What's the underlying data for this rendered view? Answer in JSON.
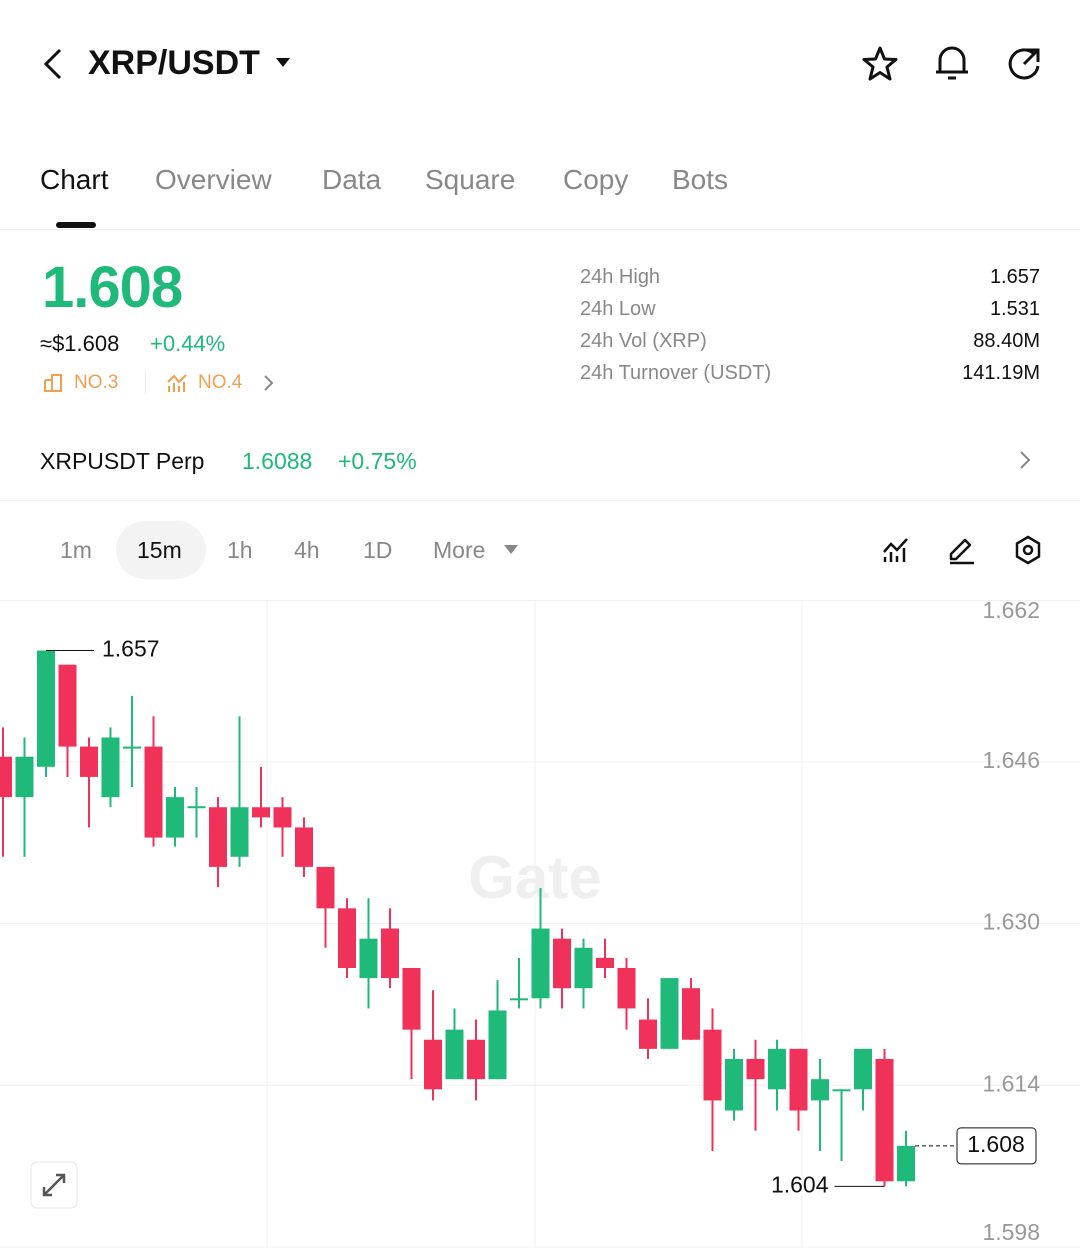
{
  "header": {
    "title": "XRP/USDT"
  },
  "tabs": [
    "Chart",
    "Overview",
    "Data",
    "Square",
    "Copy",
    "Bots"
  ],
  "price": {
    "last": "1.608",
    "usd": "≈$1.608",
    "change": "+0.44%",
    "rank_a": "NO.3",
    "rank_b": "NO.4"
  },
  "stats": [
    {
      "label": "24h High",
      "value": "1.657"
    },
    {
      "label": "24h Low",
      "value": "1.531"
    },
    {
      "label": "24h Vol (XRP)",
      "value": "88.40M"
    },
    {
      "label": "24h Turnover (USDT)",
      "value": "141.19M"
    }
  ],
  "perp": {
    "name": "XRPUSDT Perp",
    "price": "1.6088",
    "change": "+0.75%"
  },
  "intervals": [
    "1m",
    "15m",
    "1h",
    "4h",
    "1D",
    "More"
  ],
  "chart_data": {
    "type": "candlestick",
    "watermark": "Gate",
    "up_color": "#1fba7a",
    "down_color": "#f0315a",
    "open": [
      1.6465,
      1.6425,
      1.6455,
      1.6556,
      1.6475,
      1.6425,
      1.6473,
      1.6475,
      1.6385,
      1.6415,
      1.6415,
      1.6366,
      1.6415,
      1.6415,
      1.6395,
      1.6356,
      1.6315,
      1.6246,
      1.6295,
      1.6256,
      1.6185,
      1.6146,
      1.6185,
      1.6146,
      1.6225,
      1.6226,
      1.6285,
      1.6236,
      1.6266,
      1.6256,
      1.6205,
      1.6176,
      1.6236,
      1.6195,
      1.6115,
      1.6166,
      1.6136,
      1.6176,
      1.6125,
      1.6135,
      1.6136,
      1.6166,
      1.6045
    ],
    "high": [
      1.6494,
      1.6484,
      1.657,
      1.6556,
      1.6484,
      1.6494,
      1.6525,
      1.6505,
      1.6435,
      1.6435,
      1.6425,
      1.6505,
      1.6455,
      1.6425,
      1.6405,
      1.6356,
      1.6325,
      1.6325,
      1.6315,
      1.6256,
      1.6234,
      1.6216,
      1.6205,
      1.6244,
      1.6266,
      1.6335,
      1.6295,
      1.6285,
      1.6285,
      1.6266,
      1.6226,
      1.6246,
      1.6246,
      1.6216,
      1.6176,
      1.6185,
      1.6185,
      1.6176,
      1.6166,
      1.6136,
      1.6176,
      1.6176,
      1.6095
    ],
    "low": [
      1.6366,
      1.6366,
      1.6445,
      1.6445,
      1.6395,
      1.6415,
      1.6435,
      1.6376,
      1.6376,
      1.6385,
      1.6336,
      1.6356,
      1.6395,
      1.6366,
      1.6346,
      1.6276,
      1.6246,
      1.6216,
      1.6236,
      1.6146,
      1.6125,
      1.6146,
      1.6125,
      1.6146,
      1.6216,
      1.6216,
      1.6216,
      1.6216,
      1.6246,
      1.6195,
      1.6166,
      1.6176,
      1.6185,
      1.6075,
      1.6105,
      1.6095,
      1.6115,
      1.6095,
      1.6075,
      1.6065,
      1.6115,
      1.604,
      1.604
    ],
    "close": [
      1.6425,
      1.6465,
      1.657,
      1.6475,
      1.6445,
      1.6484,
      1.6475,
      1.6385,
      1.6425,
      1.6416,
      1.6356,
      1.6415,
      1.6405,
      1.6395,
      1.6356,
      1.6315,
      1.6256,
      1.6285,
      1.6246,
      1.6195,
      1.6136,
      1.6195,
      1.6146,
      1.6214,
      1.6226,
      1.6295,
      1.6236,
      1.6276,
      1.6256,
      1.6216,
      1.6176,
      1.6246,
      1.6185,
      1.6125,
      1.6166,
      1.6146,
      1.6176,
      1.6115,
      1.6146,
      1.6136,
      1.6176,
      1.6045,
      1.608
    ],
    "ylim": [
      1.598,
      1.662
    ],
    "yticks": [
      1.662,
      1.646,
      {
        "value": 1.63,
        "label": "1.630"
      },
      1.614,
      1.598
    ],
    "max_label": 1.657,
    "min_label": 1.604,
    "last_price": 1.608,
    "grid": true
  }
}
